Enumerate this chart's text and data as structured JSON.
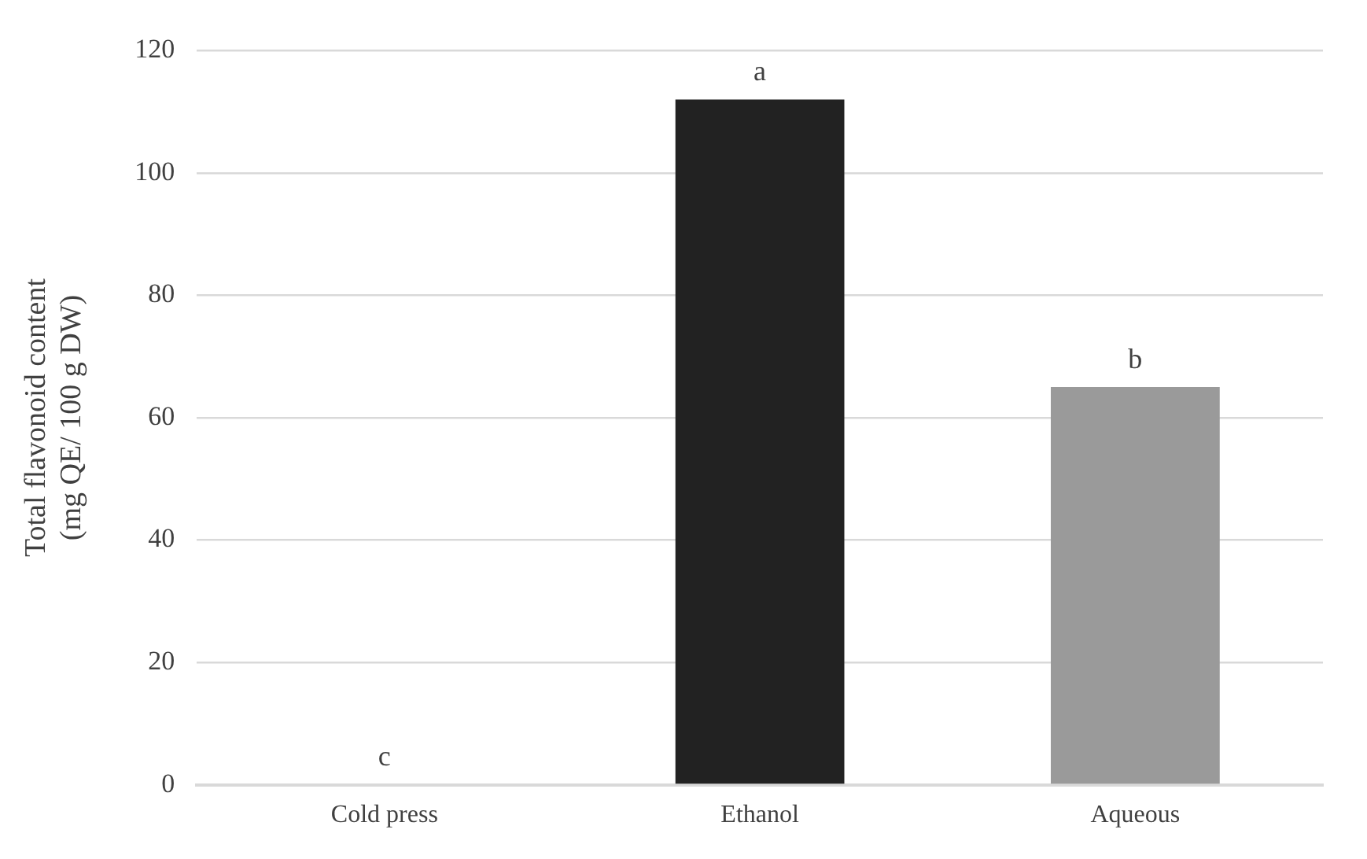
{
  "chart_data": {
    "type": "bar",
    "ylabel": "Total flavonoid content\n(mg QE/ 100 g DW)",
    "categories": [
      "Cold press",
      "Ethanol",
      "Aqueous"
    ],
    "values": [
      0,
      112,
      65
    ],
    "colors": [
      "#222222",
      "#222222",
      "#9a9a9a"
    ],
    "ylim": [
      0,
      120
    ],
    "yticks": [
      0,
      20,
      40,
      60,
      80,
      100,
      120
    ],
    "grid": "y",
    "legend": false,
    "annotations": [
      {
        "text": "c",
        "x": "Cold press",
        "y": 0
      },
      {
        "text": "a",
        "x": "Ethanol",
        "y": 112
      },
      {
        "text": "b",
        "x": "Aqueous",
        "y": 65
      }
    ]
  }
}
